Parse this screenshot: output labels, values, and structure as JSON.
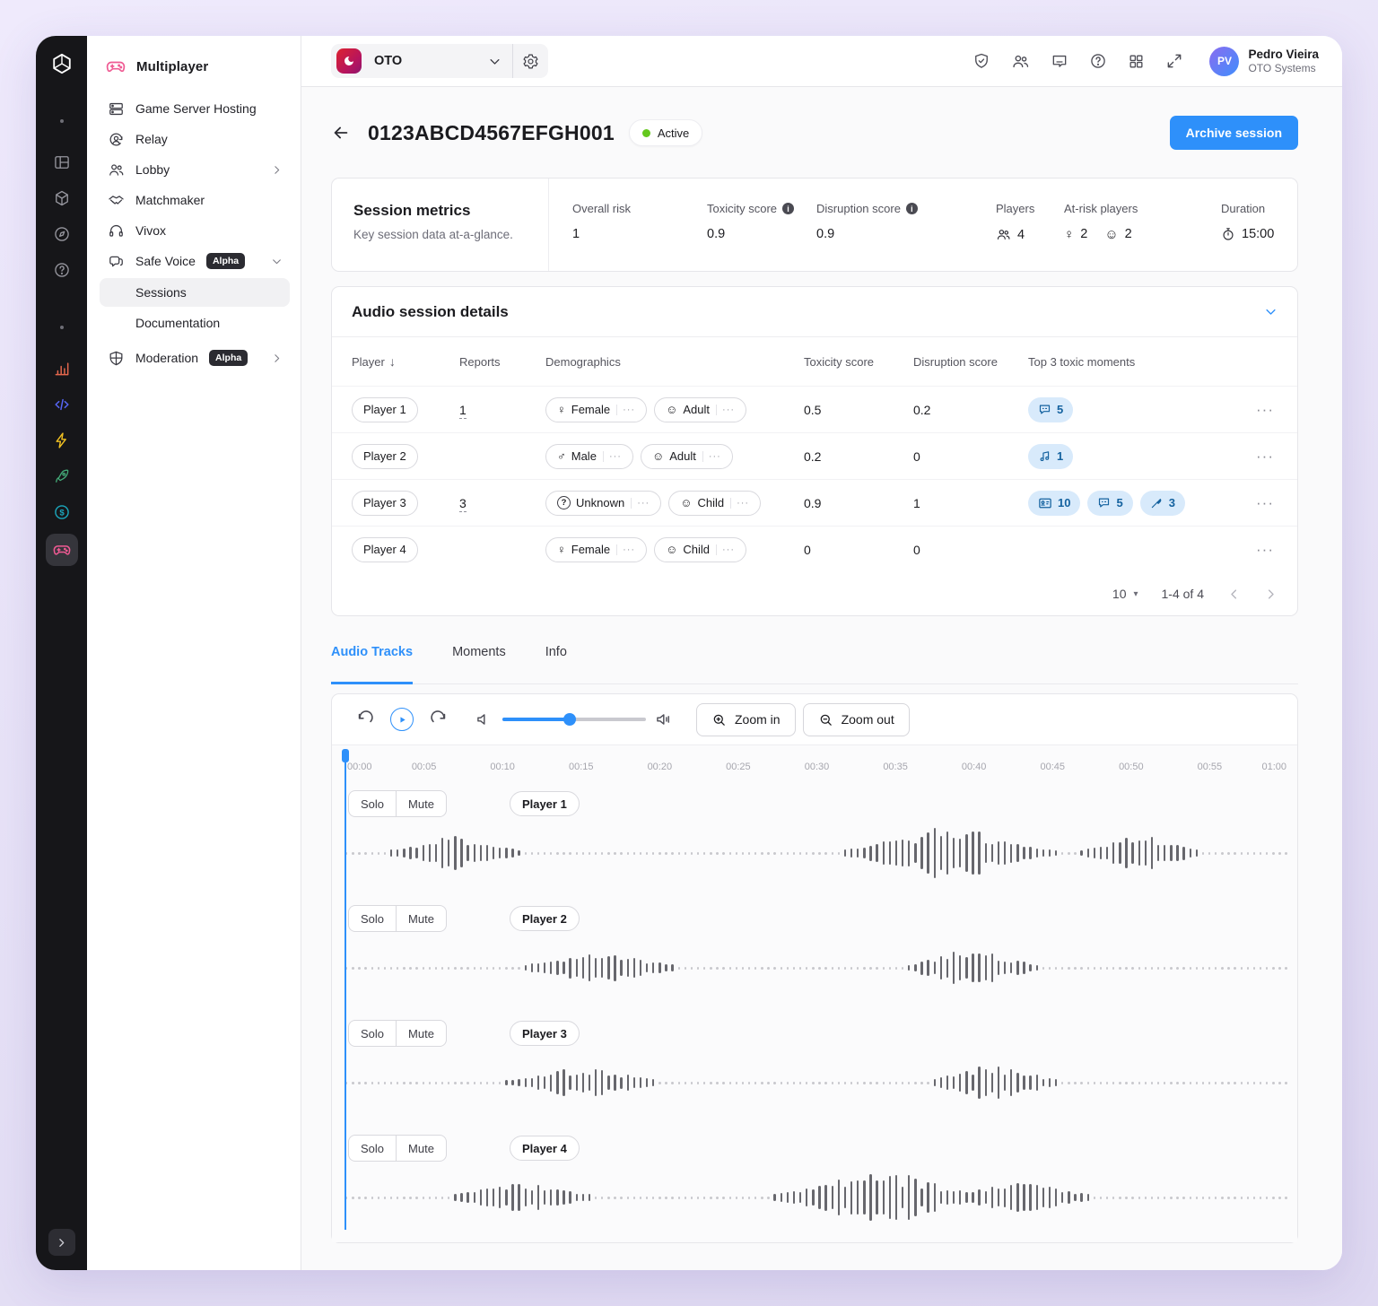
{
  "icons": {
    "female": "♀",
    "male": "♂",
    "unknown": "?",
    "face": "☺",
    "more": "···",
    "sort_desc": "↓",
    "row_actions": "···",
    "page_size_caret": "▾",
    "info": "i"
  },
  "colors": {
    "accent_blue": "#2E90FA",
    "active_green": "#64C81E",
    "brand_pink": "#EF5A93",
    "badge_bg": "#D8EAFB",
    "badge_text": "#14629F"
  },
  "topbar": {
    "project": {
      "name": "OTO"
    },
    "user": {
      "name": "Pedro Vieira",
      "org": "OTO Systems",
      "initials": "PV"
    }
  },
  "sidebar": {
    "title": "Multiplayer",
    "items": [
      {
        "label": "Game Server Hosting"
      },
      {
        "label": "Relay"
      },
      {
        "label": "Lobby"
      },
      {
        "label": "Matchmaker"
      },
      {
        "label": "Vivox"
      },
      {
        "label": "Safe Voice",
        "badge": "Alpha"
      }
    ],
    "safe_voice_children": [
      {
        "label": "Sessions",
        "selected": true
      },
      {
        "label": "Documentation"
      }
    ],
    "moderation": {
      "label": "Moderation",
      "badge": "Alpha"
    }
  },
  "page": {
    "title": "0123ABCD4567EFGH001",
    "status": "Active",
    "archive_label": "Archive session"
  },
  "metrics": {
    "title": "Session metrics",
    "subtitle": "Key session data at-a-glance.",
    "overall_risk": {
      "label": "Overall risk",
      "value": "1"
    },
    "toxicity": {
      "label": "Toxicity score",
      "value": "0.9"
    },
    "disruption": {
      "label": "Disruption score",
      "value": "0.9"
    },
    "players": {
      "label": "Players",
      "value": "4"
    },
    "at_risk": {
      "label": "At-risk players",
      "female_count": "2",
      "child_count": "2"
    },
    "duration": {
      "label": "Duration",
      "value": "15:00"
    }
  },
  "details": {
    "title": "Audio session details",
    "headers": {
      "player": "Player",
      "reports": "Reports",
      "demographics": "Demographics",
      "toxicity": "Toxicity score",
      "disruption": "Disruption score",
      "moments": "Top 3 toxic moments"
    },
    "rows": [
      {
        "player": "Player 1",
        "reports": "1",
        "gender": "Female",
        "age": "Adult",
        "toxicity": "0.5",
        "disruption": "0.2",
        "moments": [
          {
            "icon": "speech",
            "count": "5"
          }
        ]
      },
      {
        "player": "Player 2",
        "reports": "",
        "gender": "Male",
        "age": "Adult",
        "toxicity": "0.2",
        "disruption": "0",
        "moments": [
          {
            "icon": "music",
            "count": "1"
          }
        ]
      },
      {
        "player": "Player 3",
        "reports": "3",
        "gender": "Unknown",
        "age": "Child",
        "toxicity": "0.9",
        "disruption": "1",
        "moments": [
          {
            "icon": "id-card",
            "count": "10"
          },
          {
            "icon": "speech",
            "count": "5"
          },
          {
            "icon": "knife",
            "count": "3"
          }
        ]
      },
      {
        "player": "Player 4",
        "reports": "",
        "gender": "Female",
        "age": "Child",
        "toxicity": "0",
        "disruption": "0",
        "moments": []
      }
    ],
    "pagination": {
      "page_size": "10",
      "range": "1-4 of 4"
    }
  },
  "tabs": [
    {
      "label": "Audio Tracks",
      "active": true
    },
    {
      "label": "Moments",
      "active": false
    },
    {
      "label": "Info",
      "active": false
    }
  ],
  "player": {
    "zoom_in": "Zoom in",
    "zoom_out": "Zoom out",
    "volume_percent": 47,
    "solo_label": "Solo",
    "mute_label": "Mute",
    "ruler": [
      "00:00",
      "00:05",
      "00:10",
      "00:15",
      "00:20",
      "00:25",
      "00:30",
      "00:35",
      "00:40",
      "00:45",
      "00:50",
      "00:55",
      "01:00"
    ],
    "tracks": [
      {
        "name": "Player 1",
        "bursts": [
          [
            0.115,
            0.033,
            0.62
          ],
          [
            0.64,
            0.05,
            1.0
          ],
          [
            0.845,
            0.03,
            0.66
          ]
        ]
      },
      {
        "name": "Player 2",
        "bursts": [
          [
            0.27,
            0.04,
            0.52
          ],
          [
            0.665,
            0.034,
            0.64
          ]
        ]
      },
      {
        "name": "Player 3",
        "bursts": [
          [
            0.25,
            0.04,
            0.52
          ],
          [
            0.69,
            0.032,
            0.68
          ]
        ]
      },
      {
        "name": "Player 4",
        "bursts": [
          [
            0.185,
            0.038,
            0.48
          ],
          [
            0.565,
            0.05,
            1.0
          ],
          [
            0.72,
            0.035,
            0.58
          ]
        ]
      }
    ]
  }
}
